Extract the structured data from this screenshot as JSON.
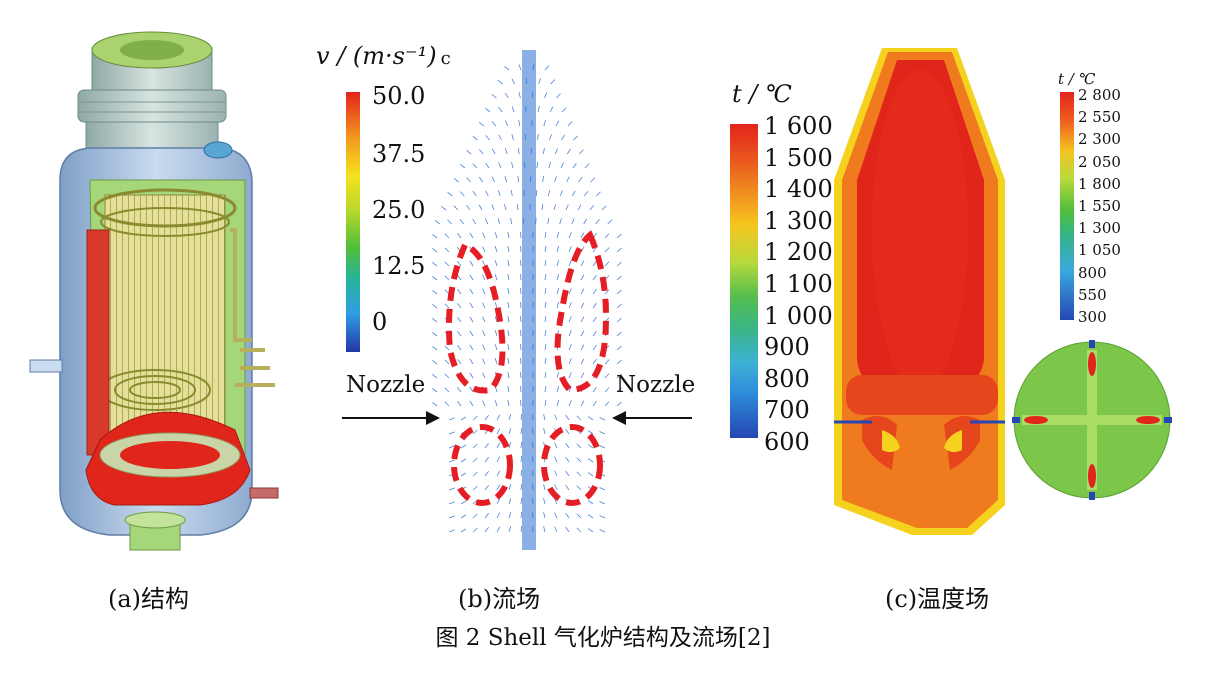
{
  "panels": [
    {
      "id": "a",
      "caption": "(a)结构"
    },
    {
      "id": "b",
      "caption": "(b)流场"
    },
    {
      "id": "c",
      "caption": "(c)温度场"
    }
  ],
  "figure_title": "图  2    Shell 气化炉结构及流场[2]",
  "velocity_legend": {
    "unit_html": "v / (m·s⁻¹)",
    "suffix": "c",
    "ticks": [
      "50.0",
      "37.5",
      "25.0",
      "12.5",
      "0"
    ]
  },
  "nozzle_label_left": "Nozzle",
  "nozzle_label_right": "Nozzle",
  "temp_legend_main": {
    "unit": "t / ℃",
    "ticks": [
      "1 600",
      "1 500",
      "1 400",
      "1 300",
      "1 200",
      "1 100",
      "1 000",
      "900",
      "800",
      "700",
      "600"
    ]
  },
  "temp_legend_small": {
    "unit": "t / ℃",
    "ticks": [
      "2 800",
      "2 550",
      "2 300",
      "2 050",
      "1 800",
      "1 550",
      "1 300",
      "1 050",
      "800",
      "550",
      "300"
    ]
  },
  "colors": {
    "shell_blue": "#a9c3e0",
    "lining_green": "#a5d77a",
    "coil_yellow": "#d6d27a",
    "hot_red": "#e0261b",
    "orange_field": "#f07a1e",
    "flow_blue": "#2b6fd1"
  }
}
